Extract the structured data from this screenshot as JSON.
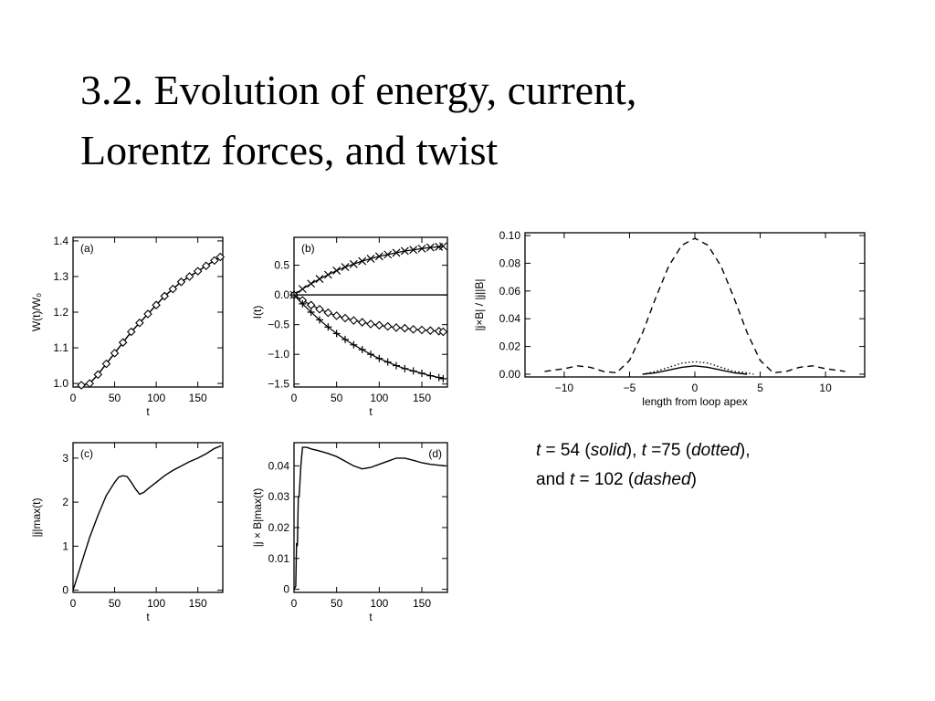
{
  "slide": {
    "title_line1": "3.2. Evolution of energy, current,",
    "title_line2": "Lorentz forces, and twist"
  },
  "caption": {
    "p1": "t",
    "p2": " = 54 (",
    "p3": "solid",
    "p4": "), ",
    "p5": "t",
    "p6": " =75 (",
    "p7": "dotted",
    "p8": "),",
    "p9": "and ",
    "p10": "t",
    "p11": " = 102 (",
    "p12": "dashed",
    "p13": ")"
  },
  "chart_data": [
    {
      "id": "a",
      "type": "line",
      "panel_label": "(a)",
      "xlabel": "t",
      "ylabel": "W(t)/W₀",
      "xlim": [
        0,
        180
      ],
      "ylim": [
        0.99,
        1.41
      ],
      "xticks": [
        0,
        50,
        100,
        150
      ],
      "xtick_labels": [
        "0",
        "50",
        "100",
        "150"
      ],
      "yticks": [
        1.0,
        1.1,
        1.2,
        1.3,
        1.4
      ],
      "ytick_labels": [
        "1.0",
        "1.1",
        "1.2",
        "1.3",
        "1.4"
      ],
      "series": [
        {
          "style": "solid",
          "x": [
            10,
            20,
            30,
            40,
            50,
            60,
            70,
            80,
            90,
            100,
            110,
            120,
            130,
            140,
            150,
            160,
            170,
            177
          ],
          "y": [
            0.995,
            1.0,
            1.025,
            1.055,
            1.085,
            1.115,
            1.145,
            1.17,
            1.195,
            1.22,
            1.245,
            1.265,
            1.285,
            1.3,
            1.315,
            1.33,
            1.345,
            1.355
          ]
        },
        {
          "style": "diamond-markers",
          "x": [
            10,
            20,
            30,
            40,
            50,
            60,
            70,
            80,
            90,
            100,
            110,
            120,
            130,
            140,
            150,
            160,
            170,
            177
          ],
          "y": [
            0.995,
            1.0,
            1.025,
            1.055,
            1.085,
            1.115,
            1.145,
            1.17,
            1.195,
            1.22,
            1.245,
            1.265,
            1.285,
            1.3,
            1.315,
            1.33,
            1.345,
            1.355
          ]
        }
      ]
    },
    {
      "id": "b",
      "type": "line",
      "panel_label": "(b)",
      "xlabel": "t",
      "ylabel": "I(t)",
      "xlim": [
        0,
        180
      ],
      "ylim": [
        -1.55,
        0.97
      ],
      "xticks": [
        0,
        50,
        100,
        150
      ],
      "xtick_labels": [
        "0",
        "50",
        "100",
        "150"
      ],
      "yticks": [
        0.5,
        0.0,
        -0.5,
        -1.0,
        -1.5
      ],
      "ytick_labels": [
        "0.5",
        "0.0",
        "−0.5",
        "−1.0",
        "−1.5"
      ],
      "series": [
        {
          "style": "hline",
          "x": [
            0,
            180
          ],
          "y": [
            0.0,
            0.0
          ]
        },
        {
          "style": "x-markers",
          "x": [
            0,
            10,
            20,
            30,
            40,
            50,
            60,
            70,
            80,
            90,
            100,
            110,
            120,
            130,
            140,
            150,
            160,
            170,
            175
          ],
          "y": [
            0.0,
            0.1,
            0.19,
            0.27,
            0.34,
            0.41,
            0.47,
            0.52,
            0.57,
            0.61,
            0.65,
            0.68,
            0.71,
            0.74,
            0.76,
            0.78,
            0.8,
            0.81,
            0.82
          ]
        },
        {
          "style": "diamond-markers",
          "x": [
            0,
            10,
            20,
            30,
            40,
            50,
            60,
            70,
            80,
            90,
            100,
            110,
            120,
            130,
            140,
            150,
            160,
            170,
            175
          ],
          "y": [
            0.0,
            -0.09,
            -0.17,
            -0.24,
            -0.3,
            -0.35,
            -0.39,
            -0.43,
            -0.46,
            -0.49,
            -0.51,
            -0.53,
            -0.55,
            -0.56,
            -0.58,
            -0.59,
            -0.6,
            -0.61,
            -0.62
          ]
        },
        {
          "style": "plus-markers",
          "x": [
            0,
            10,
            20,
            30,
            40,
            50,
            60,
            70,
            80,
            90,
            100,
            110,
            120,
            130,
            140,
            150,
            160,
            170,
            175
          ],
          "y": [
            0.0,
            -0.15,
            -0.29,
            -0.42,
            -0.54,
            -0.65,
            -0.75,
            -0.84,
            -0.92,
            -1.0,
            -1.07,
            -1.13,
            -1.19,
            -1.24,
            -1.28,
            -1.32,
            -1.36,
            -1.39,
            -1.41
          ]
        }
      ]
    },
    {
      "id": "c",
      "type": "line",
      "panel_label": "(c)",
      "xlabel": "t",
      "ylabel": "|j|max(t)",
      "xlim": [
        0,
        180
      ],
      "ylim": [
        -0.05,
        3.35
      ],
      "xticks": [
        0,
        50,
        100,
        150
      ],
      "xtick_labels": [
        "0",
        "50",
        "100",
        "150"
      ],
      "yticks": [
        0,
        1,
        2,
        3
      ],
      "ytick_labels": [
        "0",
        "1",
        "2",
        "3"
      ],
      "series": [
        {
          "style": "solid",
          "x": [
            0,
            5,
            10,
            20,
            30,
            40,
            50,
            55,
            60,
            65,
            70,
            75,
            80,
            85,
            90,
            100,
            110,
            120,
            130,
            140,
            150,
            160,
            170,
            178
          ],
          "y": [
            0.0,
            0.3,
            0.6,
            1.2,
            1.7,
            2.15,
            2.45,
            2.57,
            2.6,
            2.58,
            2.45,
            2.3,
            2.18,
            2.22,
            2.3,
            2.45,
            2.6,
            2.72,
            2.82,
            2.92,
            3.0,
            3.1,
            3.22,
            3.28
          ]
        }
      ]
    },
    {
      "id": "d",
      "type": "line",
      "panel_label": "(d)",
      "xlabel": "t",
      "ylabel": "|j × B|max(t)",
      "xlim": [
        0,
        180
      ],
      "ylim": [
        -0.001,
        0.0475
      ],
      "xticks": [
        0,
        50,
        100,
        150
      ],
      "xtick_labels": [
        "0",
        "50",
        "100",
        "150"
      ],
      "yticks": [
        0,
        0.01,
        0.02,
        0.03,
        0.04
      ],
      "ytick_labels": [
        "0",
        "0.01",
        "0.02",
        "0.03",
        "0.04"
      ],
      "series": [
        {
          "style": "solid",
          "x": [
            0,
            2,
            3,
            4,
            5,
            6,
            8,
            10,
            15,
            20,
            30,
            40,
            50,
            60,
            70,
            80,
            90,
            100,
            110,
            120,
            130,
            140,
            150,
            160,
            170,
            178
          ],
          "y": [
            0.0,
            0.001,
            0.015,
            0.014,
            0.03,
            0.03,
            0.04,
            0.046,
            0.046,
            0.0455,
            0.0448,
            0.044,
            0.043,
            0.0415,
            0.04,
            0.039,
            0.0395,
            0.0405,
            0.0415,
            0.0425,
            0.0425,
            0.0418,
            0.041,
            0.0405,
            0.0402,
            0.04
          ]
        }
      ]
    },
    {
      "id": "profile",
      "type": "line",
      "xlabel": "length from loop apex",
      "ylabel": "|j×B| / |j||B|",
      "xlim": [
        -13,
        13
      ],
      "ylim": [
        -0.002,
        0.102
      ],
      "xticks": [
        -10,
        -5,
        0,
        5,
        10
      ],
      "xtick_labels": [
        "−10",
        "−5",
        "0",
        "5",
        "10"
      ],
      "yticks": [
        0.0,
        0.02,
        0.04,
        0.06,
        0.08,
        0.1
      ],
      "ytick_labels": [
        "0.00",
        "0.02",
        "0.04",
        "0.06",
        "0.08",
        "0.10"
      ],
      "series": [
        {
          "style": "solid",
          "x": [
            -4,
            -3,
            -2,
            -1,
            0,
            1,
            2,
            3,
            4
          ],
          "y": [
            0.0,
            0.001,
            0.003,
            0.005,
            0.006,
            0.005,
            0.003,
            0.001,
            0.0
          ]
        },
        {
          "style": "dotted",
          "x": [
            -4,
            -3,
            -2,
            -1,
            0,
            1,
            2,
            3,
            4,
            4.5
          ],
          "y": [
            0.0,
            0.002,
            0.005,
            0.008,
            0.009,
            0.008,
            0.005,
            0.002,
            0.001,
            0.0
          ]
        },
        {
          "style": "dashed",
          "x": [
            -11.5,
            -10,
            -9,
            -8,
            -7,
            -6,
            -5,
            -4,
            -3,
            -2,
            -1,
            0,
            1,
            2,
            3,
            4,
            5,
            6,
            7,
            8,
            9,
            10,
            11.5
          ],
          "y": [
            0.002,
            0.004,
            0.006,
            0.005,
            0.002,
            0.001,
            0.01,
            0.03,
            0.055,
            0.078,
            0.093,
            0.098,
            0.093,
            0.078,
            0.055,
            0.03,
            0.01,
            0.001,
            0.002,
            0.005,
            0.006,
            0.004,
            0.002
          ]
        }
      ]
    }
  ]
}
